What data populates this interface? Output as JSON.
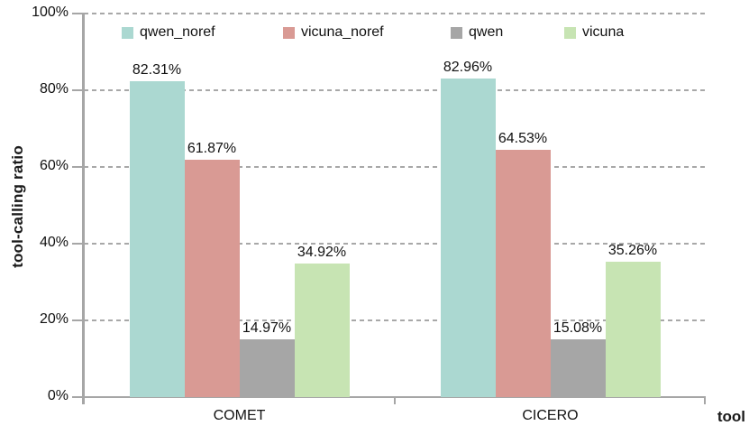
{
  "chart_data": {
    "type": "bar",
    "title": "",
    "xlabel": "tool",
    "ylabel": "tool-calling ratio",
    "categories": [
      "COMET",
      "CICERO"
    ],
    "series": [
      {
        "name": "qwen_noref",
        "color": "#abd8d1",
        "values": [
          82.31,
          82.96
        ],
        "data_labels": [
          "82.31%",
          "82.96%"
        ]
      },
      {
        "name": "vicuna_noref",
        "color": "#d99a94",
        "values": [
          61.87,
          64.53
        ],
        "data_labels": [
          "61.87%",
          "64.53%"
        ]
      },
      {
        "name": "qwen",
        "color": "#a6a6a6",
        "values": [
          14.97,
          15.08
        ],
        "data_labels": [
          "14.97%",
          "15.08%"
        ]
      },
      {
        "name": "vicuna",
        "color": "#c7e4b3",
        "values": [
          34.92,
          35.26
        ],
        "data_labels": [
          "34.92%",
          "35.26%"
        ]
      }
    ],
    "ylim": [
      0,
      100
    ],
    "yticks": [
      {
        "value": 0,
        "label": "0%"
      },
      {
        "value": 20,
        "label": "20%"
      },
      {
        "value": 40,
        "label": "40%"
      },
      {
        "value": 60,
        "label": "60%"
      },
      {
        "value": 80,
        "label": "80%"
      },
      {
        "value": 100,
        "label": "100%"
      }
    ],
    "grid": "horizontal-dashed",
    "legend_position": "top-inside",
    "colors": {
      "axis": "#a6a6a6",
      "gridline": "#a8a8a8",
      "text": "#111111"
    }
  }
}
